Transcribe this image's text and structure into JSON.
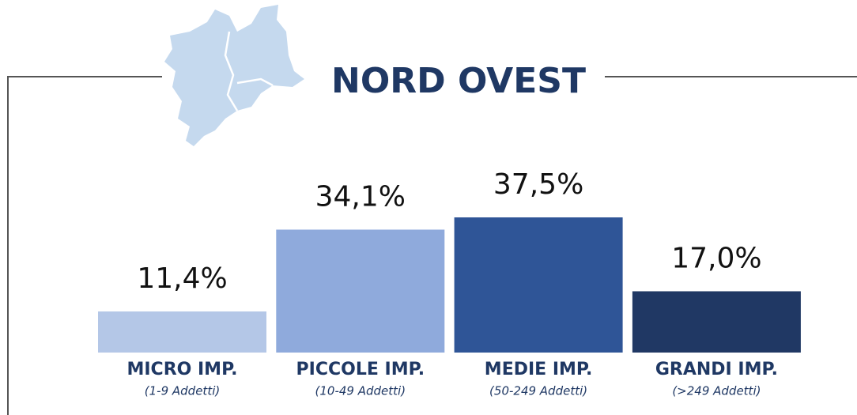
{
  "chart_data": {
    "type": "bar",
    "title": "NORD OVEST",
    "categories": [
      "MICRO IMP.",
      "PICCOLE IMP.",
      "MEDIE IMP.",
      "GRANDI IMP."
    ],
    "category_notes": [
      "(1-9 Addetti)",
      "(10-49 Addetti)",
      "(50-249 Addetti)",
      "(>249 Addetti)"
    ],
    "values": [
      11.4,
      34.1,
      37.5,
      17.0
    ],
    "value_labels": [
      "11,4%",
      "34,1%",
      "37,5%",
      "17,0%"
    ],
    "colors": [
      "#b4c7e7",
      "#8faadc",
      "#2f5597",
      "#203864"
    ]
  }
}
